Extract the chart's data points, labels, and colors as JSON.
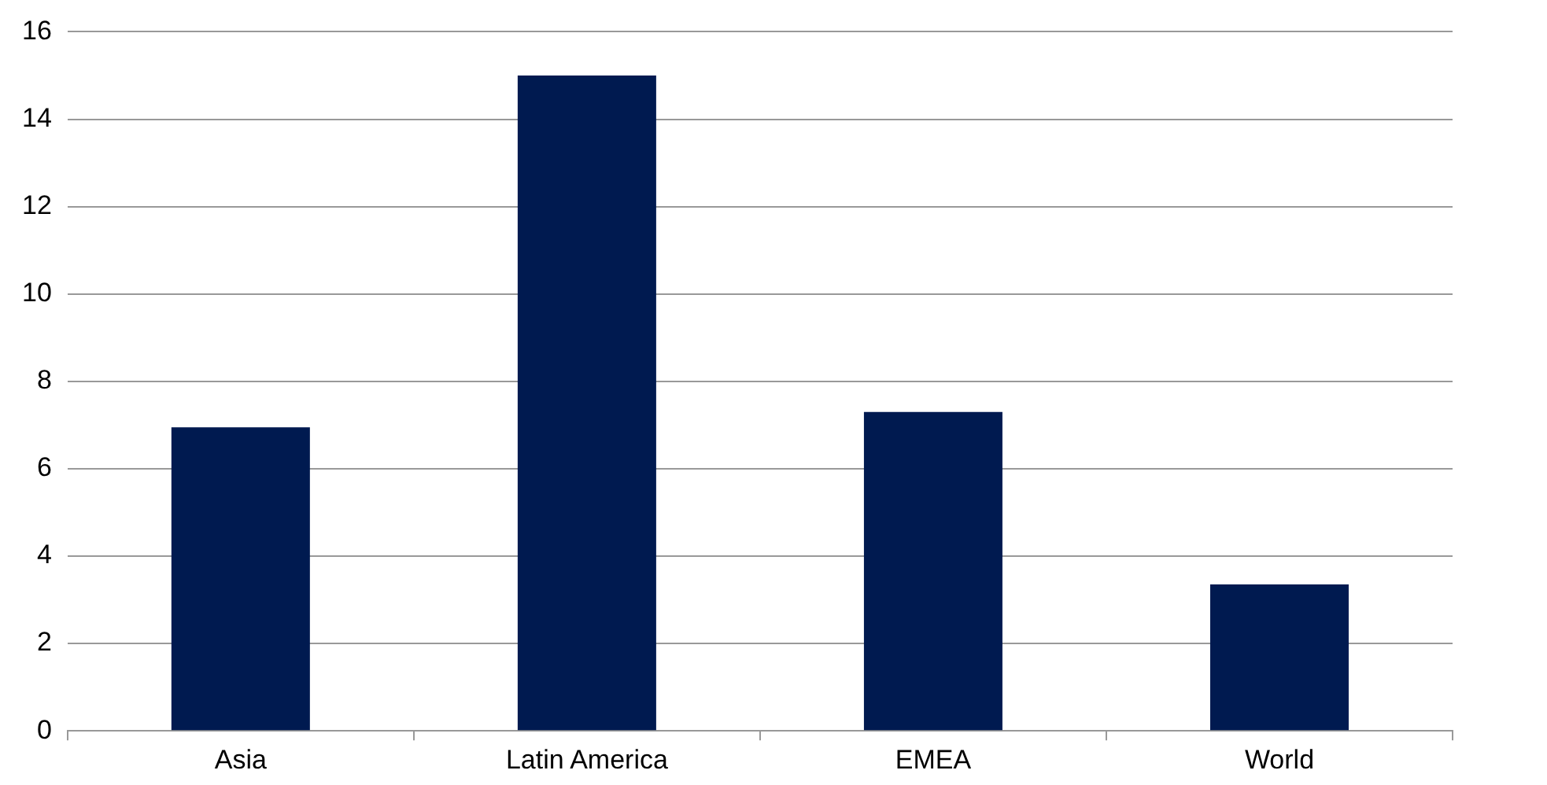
{
  "chart_data": {
    "type": "bar",
    "categories": [
      "Asia",
      "Latin America",
      "EMEA",
      "World"
    ],
    "values": [
      6.95,
      15,
      7.3,
      3.35
    ],
    "color": "#001a50",
    "ylim": [
      0,
      16
    ],
    "yticks": [
      0,
      2,
      4,
      6,
      8,
      10,
      12,
      14,
      16
    ],
    "grid": "y",
    "legend": false
  }
}
